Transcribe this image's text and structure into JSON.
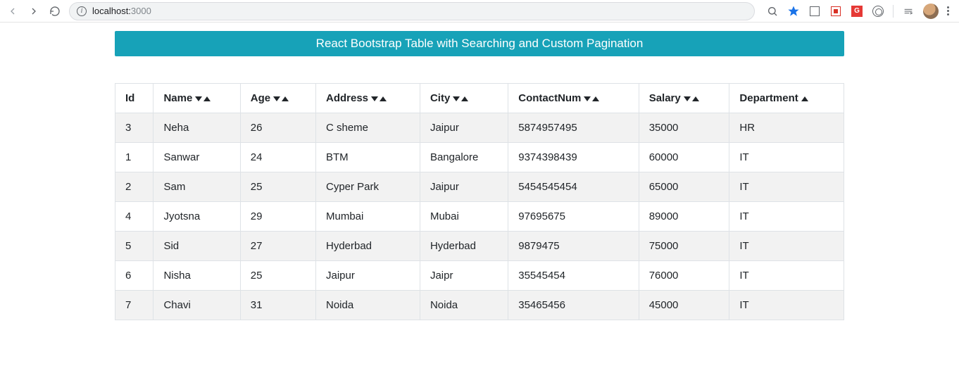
{
  "browser": {
    "url_host": "localhost:",
    "url_port": "3000"
  },
  "header": {
    "title": "React Bootstrap Table with Searching and Custom Pagination",
    "bg_color": "#17a2b8",
    "text_color": "#ffffff"
  },
  "table": {
    "stripe_color": "#f2f2f2",
    "border_color": "#dee2e6",
    "columns": [
      {
        "key": "id",
        "label": "Id",
        "sort": "none"
      },
      {
        "key": "name",
        "label": "Name",
        "sort": "both"
      },
      {
        "key": "age",
        "label": "Age",
        "sort": "both"
      },
      {
        "key": "address",
        "label": "Address",
        "sort": "both"
      },
      {
        "key": "city",
        "label": "City",
        "sort": "both"
      },
      {
        "key": "contact",
        "label": "ContactNum",
        "sort": "both"
      },
      {
        "key": "salary",
        "label": "Salary",
        "sort": "both"
      },
      {
        "key": "department",
        "label": "Department",
        "sort": "asc"
      }
    ],
    "rows": [
      {
        "id": "3",
        "name": "Neha",
        "age": "26",
        "address": "C sheme",
        "city": "Jaipur",
        "contact": "5874957495",
        "salary": "35000",
        "department": "HR"
      },
      {
        "id": "1",
        "name": "Sanwar",
        "age": "24",
        "address": "BTM",
        "city": "Bangalore",
        "contact": "9374398439",
        "salary": "60000",
        "department": "IT"
      },
      {
        "id": "2",
        "name": "Sam",
        "age": "25",
        "address": "Cyper Park",
        "city": "Jaipur",
        "contact": "5454545454",
        "salary": "65000",
        "department": "IT"
      },
      {
        "id": "4",
        "name": "Jyotsna",
        "age": "29",
        "address": "Mumbai",
        "city": "Mubai",
        "contact": "97695675",
        "salary": "89000",
        "department": "IT"
      },
      {
        "id": "5",
        "name": "Sid",
        "age": "27",
        "address": "Hyderbad",
        "city": "Hyderbad",
        "contact": "9879475",
        "salary": "75000",
        "department": "IT"
      },
      {
        "id": "6",
        "name": "Nisha",
        "age": "25",
        "address": "Jaipur",
        "city": "Jaipr",
        "contact": "35545454",
        "salary": "76000",
        "department": "IT"
      },
      {
        "id": "7",
        "name": "Chavi",
        "age": "31",
        "address": "Noida",
        "city": "Noida",
        "contact": "35465456",
        "salary": "45000",
        "department": "IT"
      }
    ]
  }
}
